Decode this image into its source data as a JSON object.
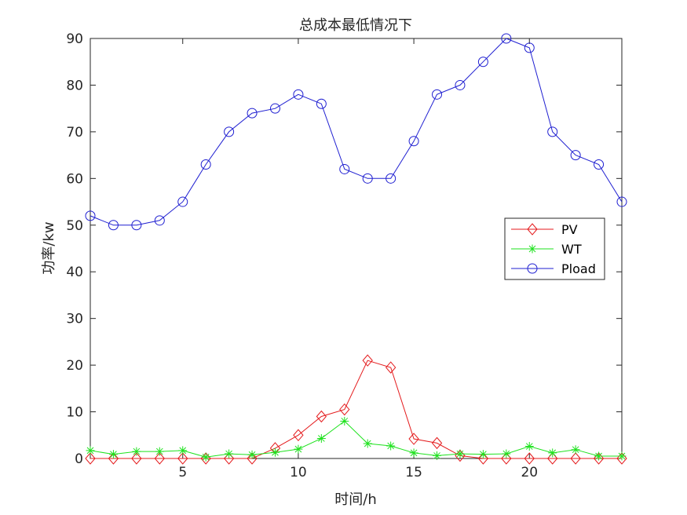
{
  "chart_data": {
    "type": "line",
    "title": "总成本最低情况下",
    "xlabel": "时间/h",
    "ylabel": "功率/kw",
    "xlim": [
      1,
      24
    ],
    "ylim": [
      0,
      90
    ],
    "x_ticks": [
      5,
      10,
      15,
      20
    ],
    "y_ticks": [
      0,
      10,
      20,
      30,
      40,
      50,
      60,
      70,
      80,
      90
    ],
    "grid": false,
    "legend_position": "right, middle",
    "x": [
      1,
      2,
      3,
      4,
      5,
      6,
      7,
      8,
      9,
      10,
      11,
      12,
      13,
      14,
      15,
      16,
      17,
      18,
      19,
      20,
      21,
      22,
      23,
      24
    ],
    "series": [
      {
        "name": "PV",
        "color": "#e41a1c",
        "marker": "diamond",
        "values": [
          0,
          0,
          0,
          0,
          0,
          0,
          0,
          0,
          2.2,
          5,
          9,
          10.5,
          21,
          19.5,
          4.2,
          3.3,
          0.6,
          0,
          0,
          0,
          0,
          0,
          0,
          0
        ]
      },
      {
        "name": "WT",
        "color": "#1ee21e",
        "marker": "asterisk",
        "values": [
          1.7,
          0.9,
          1.5,
          1.5,
          1.7,
          0.3,
          1,
          0.8,
          1.3,
          2,
          4.3,
          8,
          3.2,
          2.7,
          1.2,
          0.6,
          1,
          0.9,
          1,
          2.6,
          1.2,
          1.9,
          0.5,
          0.5
        ]
      },
      {
        "name": "Pload",
        "color": "#1f1fd1",
        "marker": "circle",
        "values": [
          52,
          50,
          50,
          51,
          55,
          63,
          70,
          74,
          75,
          78,
          76,
          62,
          60,
          60,
          68,
          78,
          80,
          85,
          90,
          88,
          70,
          65,
          63,
          55
        ]
      }
    ]
  }
}
